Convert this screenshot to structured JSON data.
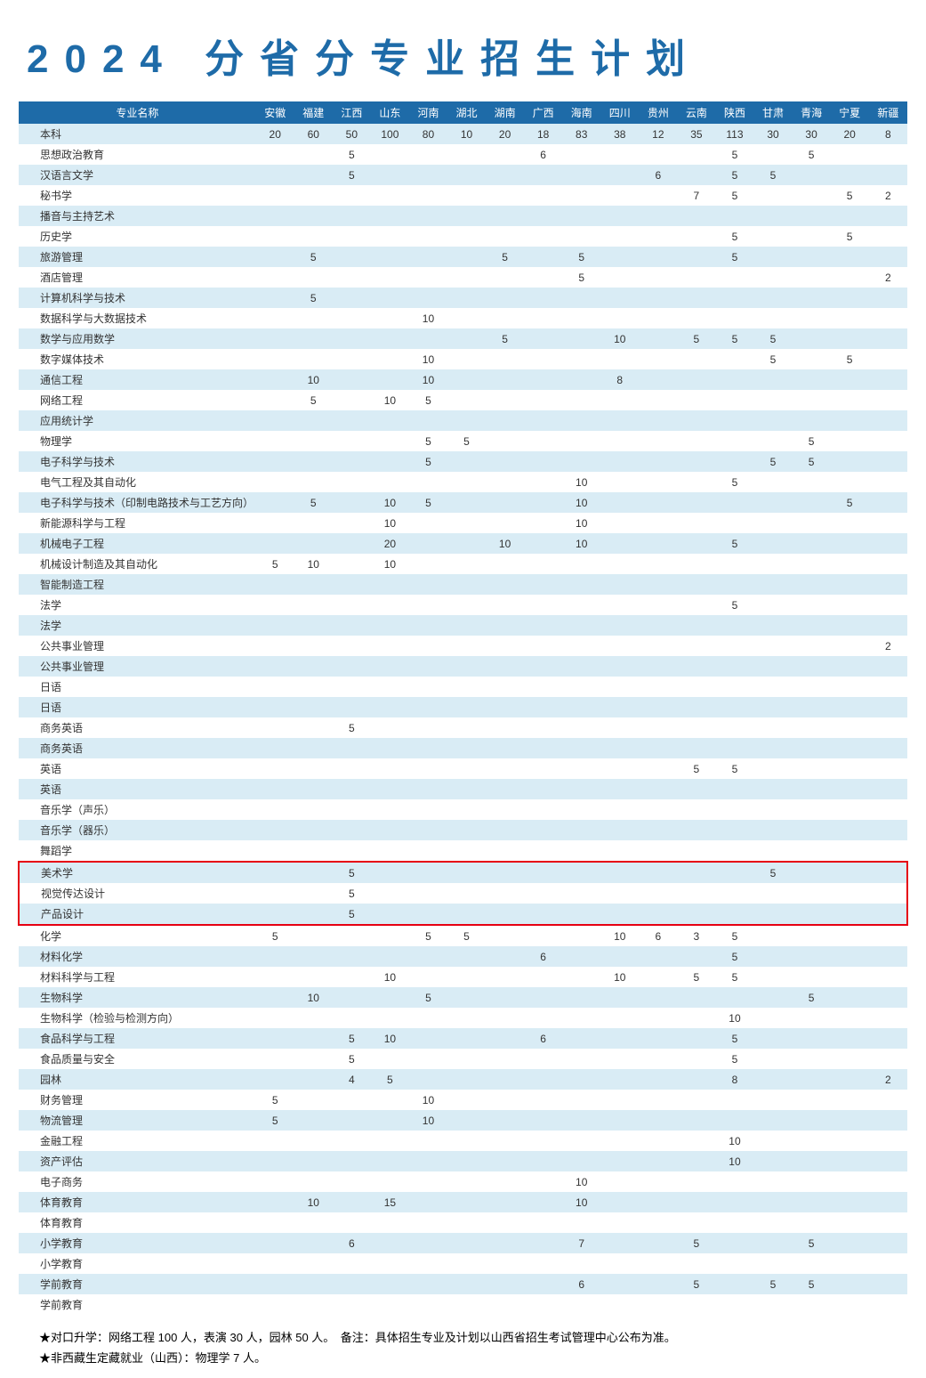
{
  "title": "2024 分省分专业招生计划",
  "columns": [
    "专业名称",
    "安徽",
    "福建",
    "江西",
    "山东",
    "河南",
    "湖北",
    "湖南",
    "广西",
    "海南",
    "四川",
    "贵州",
    "云南",
    "陕西",
    "甘肃",
    "青海",
    "宁夏",
    "新疆"
  ],
  "rows": [
    {
      "name": "本科",
      "v": [
        "20",
        "60",
        "50",
        "100",
        "80",
        "10",
        "20",
        "18",
        "83",
        "38",
        "12",
        "35",
        "113",
        "30",
        "30",
        "20",
        "8"
      ]
    },
    {
      "name": "思想政治教育",
      "v": [
        "",
        "",
        "5",
        "",
        "",
        "",
        "",
        "6",
        "",
        "",
        "",
        "",
        "5",
        "",
        "5",
        "",
        ""
      ]
    },
    {
      "name": "汉语言文学",
      "v": [
        "",
        "",
        "5",
        "",
        "",
        "",
        "",
        "",
        "",
        "",
        "6",
        "",
        "5",
        "5",
        "",
        "",
        ""
      ]
    },
    {
      "name": "秘书学",
      "v": [
        "",
        "",
        "",
        "",
        "",
        "",
        "",
        "",
        "",
        "",
        "",
        "7",
        "5",
        "",
        "",
        "5",
        "2"
      ]
    },
    {
      "name": "播音与主持艺术",
      "v": [
        "",
        "",
        "",
        "",
        "",
        "",
        "",
        "",
        "",
        "",
        "",
        "",
        "",
        "",
        "",
        "",
        ""
      ]
    },
    {
      "name": "历史学",
      "v": [
        "",
        "",
        "",
        "",
        "",
        "",
        "",
        "",
        "",
        "",
        "",
        "",
        "5",
        "",
        "",
        "5",
        ""
      ]
    },
    {
      "name": "旅游管理",
      "v": [
        "",
        "5",
        "",
        "",
        "",
        "",
        "5",
        "",
        "5",
        "",
        "",
        "",
        "5",
        "",
        "",
        "",
        ""
      ]
    },
    {
      "name": "酒店管理",
      "v": [
        "",
        "",
        "",
        "",
        "",
        "",
        "",
        "",
        "5",
        "",
        "",
        "",
        "",
        "",
        "",
        "",
        "2"
      ]
    },
    {
      "name": "计算机科学与技术",
      "v": [
        "",
        "5",
        "",
        "",
        "",
        "",
        "",
        "",
        "",
        "",
        "",
        "",
        "",
        "",
        "",
        "",
        ""
      ]
    },
    {
      "name": "数据科学与大数据技术",
      "v": [
        "",
        "",
        "",
        "",
        "10",
        "",
        "",
        "",
        "",
        "",
        "",
        "",
        "",
        "",
        "",
        "",
        ""
      ]
    },
    {
      "name": "数学与应用数学",
      "v": [
        "",
        "",
        "",
        "",
        "",
        "",
        "5",
        "",
        "",
        "10",
        "",
        "5",
        "5",
        "5",
        "",
        "",
        ""
      ]
    },
    {
      "name": "数字媒体技术",
      "v": [
        "",
        "",
        "",
        "",
        "10",
        "",
        "",
        "",
        "",
        "",
        "",
        "",
        "",
        "5",
        "",
        "5",
        ""
      ]
    },
    {
      "name": "通信工程",
      "v": [
        "",
        "10",
        "",
        "",
        "10",
        "",
        "",
        "",
        "",
        "8",
        "",
        "",
        "",
        "",
        "",
        "",
        ""
      ]
    },
    {
      "name": "网络工程",
      "v": [
        "",
        "5",
        "",
        "10",
        "5",
        "",
        "",
        "",
        "",
        "",
        "",
        "",
        "",
        "",
        "",
        "",
        ""
      ]
    },
    {
      "name": "应用统计学",
      "v": [
        "",
        "",
        "",
        "",
        "",
        "",
        "",
        "",
        "",
        "",
        "",
        "",
        "",
        "",
        "",
        "",
        ""
      ]
    },
    {
      "name": "物理学",
      "v": [
        "",
        "",
        "",
        "",
        "5",
        "5",
        "",
        "",
        "",
        "",
        "",
        "",
        "",
        "",
        "5",
        "",
        ""
      ]
    },
    {
      "name": "电子科学与技术",
      "v": [
        "",
        "",
        "",
        "",
        "5",
        "",
        "",
        "",
        "",
        "",
        "",
        "",
        "",
        "5",
        "5",
        "",
        ""
      ]
    },
    {
      "name": "电气工程及其自动化",
      "v": [
        "",
        "",
        "",
        "",
        "",
        "",
        "",
        "",
        "10",
        "",
        "",
        "",
        "5",
        "",
        "",
        "",
        ""
      ]
    },
    {
      "name": "电子科学与技术（印制电路技术与工艺方向）",
      "v": [
        "",
        "5",
        "",
        "10",
        "5",
        "",
        "",
        "",
        "10",
        "",
        "",
        "",
        "",
        "",
        "",
        "5",
        ""
      ]
    },
    {
      "name": "新能源科学与工程",
      "v": [
        "",
        "",
        "",
        "10",
        "",
        "",
        "",
        "",
        "10",
        "",
        "",
        "",
        "",
        "",
        "",
        "",
        ""
      ]
    },
    {
      "name": "机械电子工程",
      "v": [
        "",
        "",
        "",
        "20",
        "",
        "",
        "10",
        "",
        "10",
        "",
        "",
        "",
        "5",
        "",
        "",
        "",
        ""
      ]
    },
    {
      "name": "机械设计制造及其自动化",
      "v": [
        "5",
        "10",
        "",
        "10",
        "",
        "",
        "",
        "",
        "",
        "",
        "",
        "",
        "",
        "",
        "",
        "",
        ""
      ]
    },
    {
      "name": "智能制造工程",
      "v": [
        "",
        "",
        "",
        "",
        "",
        "",
        "",
        "",
        "",
        "",
        "",
        "",
        "",
        "",
        "",
        "",
        ""
      ]
    },
    {
      "name": "法学",
      "v": [
        "",
        "",
        "",
        "",
        "",
        "",
        "",
        "",
        "",
        "",
        "",
        "",
        "5",
        "",
        "",
        "",
        ""
      ]
    },
    {
      "name": "法学",
      "v": [
        "",
        "",
        "",
        "",
        "",
        "",
        "",
        "",
        "",
        "",
        "",
        "",
        "",
        "",
        "",
        "",
        ""
      ]
    },
    {
      "name": "公共事业管理",
      "v": [
        "",
        "",
        "",
        "",
        "",
        "",
        "",
        "",
        "",
        "",
        "",
        "",
        "",
        "",
        "",
        "",
        "2"
      ]
    },
    {
      "name": "公共事业管理",
      "v": [
        "",
        "",
        "",
        "",
        "",
        "",
        "",
        "",
        "",
        "",
        "",
        "",
        "",
        "",
        "",
        "",
        ""
      ]
    },
    {
      "name": "日语",
      "v": [
        "",
        "",
        "",
        "",
        "",
        "",
        "",
        "",
        "",
        "",
        "",
        "",
        "",
        "",
        "",
        "",
        ""
      ]
    },
    {
      "name": "日语",
      "v": [
        "",
        "",
        "",
        "",
        "",
        "",
        "",
        "",
        "",
        "",
        "",
        "",
        "",
        "",
        "",
        "",
        ""
      ]
    },
    {
      "name": "商务英语",
      "v": [
        "",
        "",
        "5",
        "",
        "",
        "",
        "",
        "",
        "",
        "",
        "",
        "",
        "",
        "",
        "",
        "",
        ""
      ]
    },
    {
      "name": "商务英语",
      "v": [
        "",
        "",
        "",
        "",
        "",
        "",
        "",
        "",
        "",
        "",
        "",
        "",
        "",
        "",
        "",
        "",
        ""
      ]
    },
    {
      "name": "英语",
      "v": [
        "",
        "",
        "",
        "",
        "",
        "",
        "",
        "",
        "",
        "",
        "",
        "5",
        "5",
        "",
        "",
        "",
        ""
      ]
    },
    {
      "name": "英语",
      "v": [
        "",
        "",
        "",
        "",
        "",
        "",
        "",
        "",
        "",
        "",
        "",
        "",
        "",
        "",
        "",
        "",
        ""
      ]
    },
    {
      "name": "音乐学（声乐）",
      "v": [
        "",
        "",
        "",
        "",
        "",
        "",
        "",
        "",
        "",
        "",
        "",
        "",
        "",
        "",
        "",
        "",
        ""
      ]
    },
    {
      "name": "音乐学（器乐）",
      "v": [
        "",
        "",
        "",
        "",
        "",
        "",
        "",
        "",
        "",
        "",
        "",
        "",
        "",
        "",
        "",
        "",
        ""
      ]
    },
    {
      "name": "舞蹈学",
      "v": [
        "",
        "",
        "",
        "",
        "",
        "",
        "",
        "",
        "",
        "",
        "",
        "",
        "",
        "",
        "",
        "",
        ""
      ]
    },
    {
      "name": "美术学",
      "v": [
        "",
        "",
        "5",
        "",
        "",
        "",
        "",
        "",
        "",
        "",
        "",
        "",
        "",
        "5",
        "",
        "",
        ""
      ],
      "hl": "top"
    },
    {
      "name": "视觉传达设计",
      "v": [
        "",
        "",
        "5",
        "",
        "",
        "",
        "",
        "",
        "",
        "",
        "",
        "",
        "",
        "",
        "",
        "",
        ""
      ],
      "hl": "mid"
    },
    {
      "name": "产品设计",
      "v": [
        "",
        "",
        "5",
        "",
        "",
        "",
        "",
        "",
        "",
        "",
        "",
        "",
        "",
        "",
        "",
        "",
        ""
      ],
      "hl": "bot"
    },
    {
      "name": "化学",
      "v": [
        "5",
        "",
        "",
        "",
        "5",
        "5",
        "",
        "",
        "",
        "10",
        "6",
        "3",
        "5",
        "",
        "",
        "",
        ""
      ]
    },
    {
      "name": "材料化学",
      "v": [
        "",
        "",
        "",
        "",
        "",
        "",
        "",
        "6",
        "",
        "",
        "",
        "",
        "5",
        "",
        "",
        "",
        ""
      ]
    },
    {
      "name": "材料科学与工程",
      "v": [
        "",
        "",
        "",
        "10",
        "",
        "",
        "",
        "",
        "",
        "10",
        "",
        "5",
        "5",
        "",
        "",
        "",
        ""
      ]
    },
    {
      "name": "生物科学",
      "v": [
        "",
        "10",
        "",
        "",
        "5",
        "",
        "",
        "",
        "",
        "",
        "",
        "",
        "",
        "",
        "5",
        "",
        ""
      ]
    },
    {
      "name": "生物科学（检验与检测方向）",
      "v": [
        "",
        "",
        "",
        "",
        "",
        "",
        "",
        "",
        "",
        "",
        "",
        "",
        "10",
        "",
        "",
        "",
        ""
      ]
    },
    {
      "name": "食品科学与工程",
      "v": [
        "",
        "",
        "5",
        "10",
        "",
        "",
        "",
        "6",
        "",
        "",
        "",
        "",
        "5",
        "",
        "",
        "",
        ""
      ]
    },
    {
      "name": "食品质量与安全",
      "v": [
        "",
        "",
        "5",
        "",
        "",
        "",
        "",
        "",
        "",
        "",
        "",
        "",
        "5",
        "",
        "",
        "",
        ""
      ]
    },
    {
      "name": "园林",
      "v": [
        "",
        "",
        "4",
        "5",
        "",
        "",
        "",
        "",
        "",
        "",
        "",
        "",
        "8",
        "",
        "",
        "",
        "2"
      ]
    },
    {
      "name": "财务管理",
      "v": [
        "5",
        "",
        "",
        "",
        "10",
        "",
        "",
        "",
        "",
        "",
        "",
        "",
        "",
        "",
        "",
        "",
        ""
      ]
    },
    {
      "name": "物流管理",
      "v": [
        "5",
        "",
        "",
        "",
        "10",
        "",
        "",
        "",
        "",
        "",
        "",
        "",
        "",
        "",
        "",
        "",
        ""
      ]
    },
    {
      "name": "金融工程",
      "v": [
        "",
        "",
        "",
        "",
        "",
        "",
        "",
        "",
        "",
        "",
        "",
        "",
        "10",
        "",
        "",
        "",
        ""
      ]
    },
    {
      "name": "资产评估",
      "v": [
        "",
        "",
        "",
        "",
        "",
        "",
        "",
        "",
        "",
        "",
        "",
        "",
        "10",
        "",
        "",
        "",
        ""
      ]
    },
    {
      "name": "电子商务",
      "v": [
        "",
        "",
        "",
        "",
        "",
        "",
        "",
        "",
        "10",
        "",
        "",
        "",
        "",
        "",
        "",
        "",
        ""
      ]
    },
    {
      "name": "体育教育",
      "v": [
        "",
        "10",
        "",
        "15",
        "",
        "",
        "",
        "",
        "10",
        "",
        "",
        "",
        "",
        "",
        "",
        "",
        ""
      ]
    },
    {
      "name": "体育教育",
      "v": [
        "",
        "",
        "",
        "",
        "",
        "",
        "",
        "",
        "",
        "",
        "",
        "",
        "",
        "",
        "",
        "",
        ""
      ]
    },
    {
      "name": "小学教育",
      "v": [
        "",
        "",
        "6",
        "",
        "",
        "",
        "",
        "",
        "7",
        "",
        "",
        "5",
        "",
        "",
        "5",
        "",
        ""
      ]
    },
    {
      "name": "小学教育",
      "v": [
        "",
        "",
        "",
        "",
        "",
        "",
        "",
        "",
        "",
        "",
        "",
        "",
        "",
        "",
        "",
        "",
        ""
      ]
    },
    {
      "name": "学前教育",
      "v": [
        "",
        "",
        "",
        "",
        "",
        "",
        "",
        "",
        "6",
        "",
        "",
        "5",
        "",
        "5",
        "5",
        "",
        ""
      ]
    },
    {
      "name": "学前教育",
      "v": [
        "",
        "",
        "",
        "",
        "",
        "",
        "",
        "",
        "",
        "",
        "",
        "",
        "",
        "",
        "",
        "",
        ""
      ]
    }
  ],
  "footer": [
    "★对口升学：网络工程 100 人，表演 30 人，园林 50 人。　备注：具体招生专业及计划以山西省招生考试管理中心公布为准。",
    "★非西藏生定藏就业（山西）：物理学 7 人。"
  ],
  "colors": {
    "header_bg": "#1e6ba8",
    "row_even": "#d9ecf5",
    "row_odd": "#ffffff",
    "highlight": "#e60012",
    "title": "#1e6ba8"
  }
}
